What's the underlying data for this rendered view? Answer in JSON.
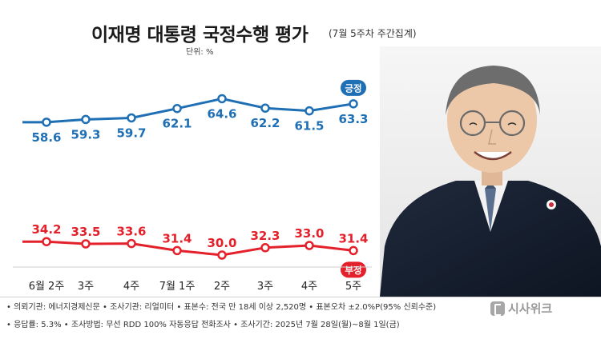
{
  "header": {
    "title": "이재명 대통령 국정수행 평가",
    "subtitle": "(7월 5주차 주간집계)",
    "unit": "단위: %"
  },
  "chart_data": {
    "type": "line",
    "categories": [
      "6월 2주",
      "3주",
      "4주",
      "7월 1주",
      "2주",
      "3주",
      "4주",
      "5주"
    ],
    "series": [
      {
        "name": "긍정",
        "values": [
          58.6,
          59.3,
          59.7,
          62.1,
          64.6,
          62.2,
          61.5,
          63.3
        ],
        "color": "#1f6fb5",
        "label_position": "below"
      },
      {
        "name": "부정",
        "values": [
          34.2,
          33.5,
          33.6,
          31.4,
          30.0,
          32.3,
          33.0,
          31.4
        ],
        "color": "#e4212b",
        "label_position": "above"
      }
    ],
    "grid": false,
    "legend": "line-end badges"
  },
  "footer": {
    "line1": "• 의뢰기관: 에너지경제신문 • 조사기관: 리얼미터 • 표본수: 전국 만 18세 이상 2,520명 • 표본오차 ±2.0%P(95% 신뢰수준)",
    "line2": "• 응답률: 5.3% • 조사방법: 무선 RDD 100% 자동응답 전화조사 • 조사기간: 2025년 7월 28일(월)~8월 1일(금)"
  },
  "logo": {
    "text": "시사위크"
  },
  "photo": {
    "subject": "portrait-photo"
  }
}
